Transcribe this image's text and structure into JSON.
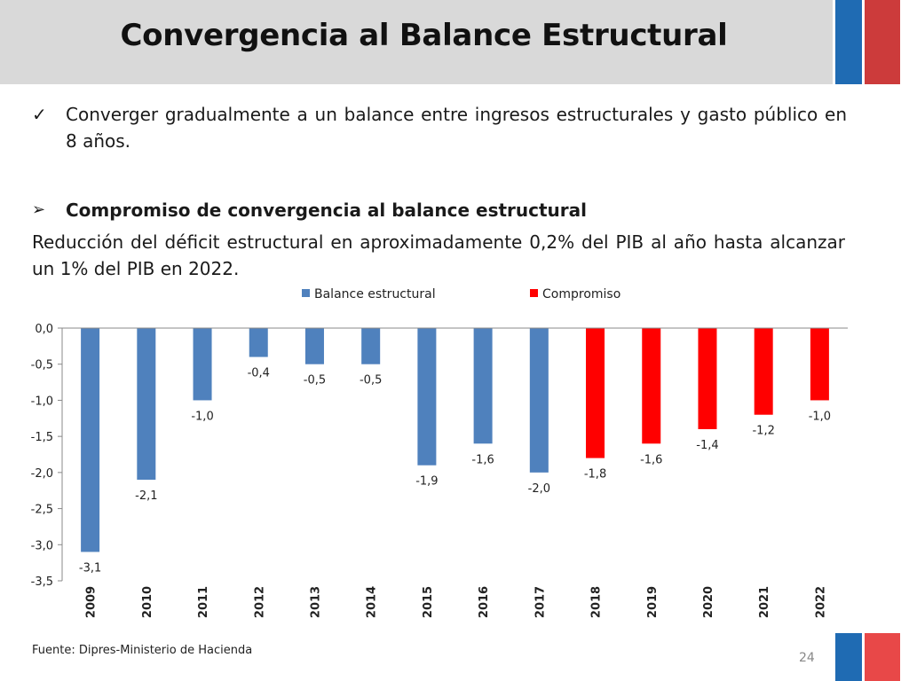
{
  "slide": {
    "title": "Convergencia al Balance Estructural",
    "bullet1": "Converger gradualmente a un balance entre ingresos estructurales y gasto público en 8 años.",
    "bullet2": "Compromiso de convergencia al balance estructural",
    "paragraph": "Reducción del déficit estructural en aproximadamente 0,2% del PIB al año hasta alcanzar un 1% del PIB en 2022.",
    "source": "Fuente: Dipres-Ministerio de Hacienda",
    "page_number": "24",
    "check_glyph": "✓",
    "arrow_glyph": "➢"
  },
  "colors": {
    "header_bg": "#d9d9d9",
    "deco_blue": "#1f6bb3",
    "deco_red": "#cc3b3b"
  },
  "chart_data": {
    "type": "bar",
    "categories": [
      "2009",
      "2010",
      "2011",
      "2012",
      "2013",
      "2014",
      "2015",
      "2016",
      "2017",
      "2018",
      "2019",
      "2020",
      "2021",
      "2022"
    ],
    "series": [
      {
        "name": "Balance estructural",
        "color": "#4f81bd",
        "values": [
          -3.1,
          -2.1,
          -1.0,
          -0.4,
          -0.5,
          -0.5,
          -1.9,
          -1.6,
          -2.0,
          null,
          null,
          null,
          null,
          null
        ],
        "labels": [
          "-3,1",
          "-2,1",
          "-1,0",
          "-0,4",
          "-0,5",
          "-0,5",
          "-1,9",
          "-1,6",
          "-2,0",
          null,
          null,
          null,
          null,
          null
        ]
      },
      {
        "name": "Compromiso",
        "color": "#ff0000",
        "values": [
          null,
          null,
          null,
          null,
          null,
          null,
          null,
          null,
          null,
          -1.8,
          -1.6,
          -1.4,
          -1.2,
          -1.0
        ],
        "labels": [
          null,
          null,
          null,
          null,
          null,
          null,
          null,
          null,
          null,
          "-1,8",
          "-1,6",
          "-1,4",
          "-1,2",
          "-1,0"
        ]
      }
    ],
    "ylim": [
      -3.5,
      0.0
    ],
    "yticks": [
      "0,0",
      "-0,5",
      "-1,0",
      "-1,5",
      "-2,0",
      "-2,5",
      "-3,0",
      "-3,5"
    ],
    "ytick_values": [
      0.0,
      -0.5,
      -1.0,
      -1.5,
      -2.0,
      -2.5,
      -3.0,
      -3.5
    ],
    "legend_position": "top-center",
    "grid": false,
    "xlabel": "",
    "ylabel": ""
  }
}
